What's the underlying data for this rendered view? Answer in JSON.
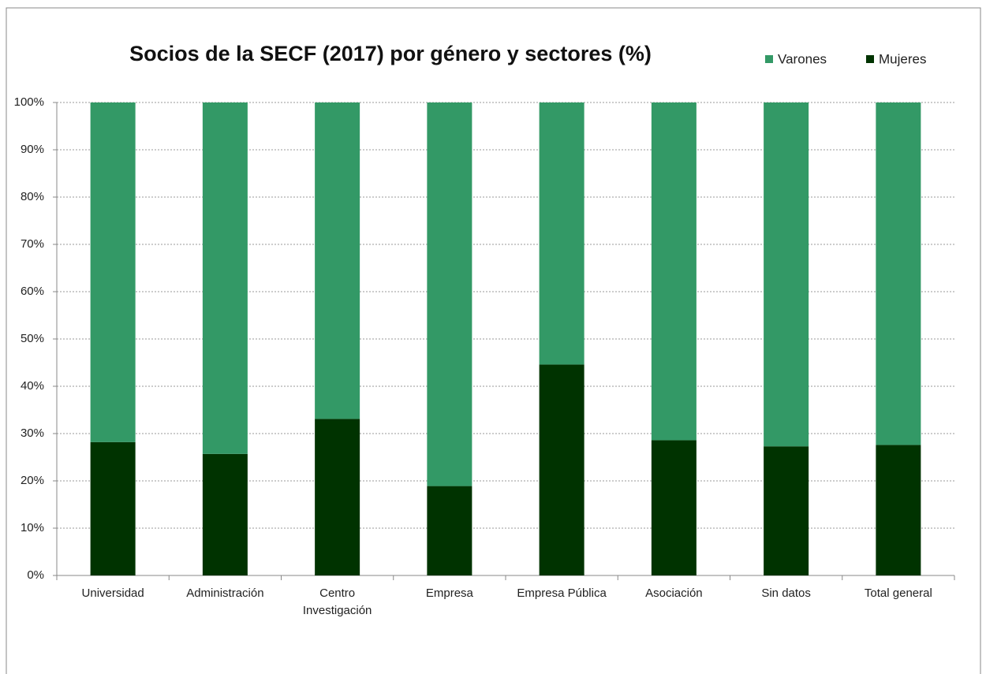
{
  "chart_data": {
    "type": "stacked_bar",
    "title": "Socios de la SECF (2017) por género y sectores (%)",
    "categories": [
      "Universidad",
      "Administración",
      "Centro Investigación",
      "Empresa",
      "Empresa Pública",
      "Asociación",
      "Sin datos",
      "Total general"
    ],
    "series": [
      {
        "name": "Varones",
        "color": "#339966",
        "values": [
          71.8,
          74.3,
          66.9,
          81.1,
          55.4,
          71.4,
          72.7,
          72.4
        ]
      },
      {
        "name": "Mujeres",
        "color": "#003300",
        "values": [
          28.2,
          25.7,
          33.1,
          18.9,
          44.6,
          28.6,
          27.3,
          27.6
        ]
      }
    ],
    "ylim": [
      0,
      100
    ],
    "yticks": [
      {
        "value": 0,
        "label": "0%"
      },
      {
        "value": 10,
        "label": "10%"
      },
      {
        "value": 20,
        "label": "20%"
      },
      {
        "value": 30,
        "label": "30%"
      },
      {
        "value": 40,
        "label": "40%"
      },
      {
        "value": 50,
        "label": "50%"
      },
      {
        "value": 60,
        "label": "60%"
      },
      {
        "value": 70,
        "label": "70%"
      },
      {
        "value": 80,
        "label": "80%"
      },
      {
        "value": 90,
        "label": "90%"
      },
      {
        "value": 100,
        "label": "100%"
      }
    ],
    "grid": true,
    "legend": "top-right"
  }
}
